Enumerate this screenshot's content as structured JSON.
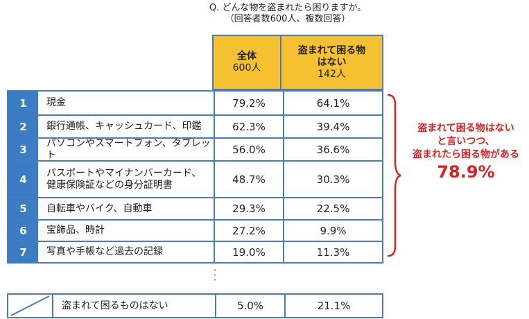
{
  "title": {
    "line1": "Q. どんな物を盗まれたら困りますか。",
    "line2": "（回答者数600人、複数回答）"
  },
  "headers": {
    "all": {
      "name": "全体",
      "n": "600人"
    },
    "none": {
      "name": "盗まれて困る物はない",
      "n": "142人"
    }
  },
  "chart_data": {
    "type": "table",
    "columns": [
      "全体 600人",
      "盗まれて困る物はない 142人"
    ],
    "rows": [
      {
        "rank": "1",
        "item": "現金",
        "all": "79.2%",
        "none": "64.1%"
      },
      {
        "rank": "2",
        "item": "銀行通帳、キャッシュカード、印鑑",
        "all": "62.3%",
        "none": "39.4%"
      },
      {
        "rank": "3",
        "item": "パソコンやスマートフォン、タブレット",
        "all": "56.0%",
        "none": "36.6%"
      },
      {
        "rank": "4",
        "item": "パスポートやマイナンバーカード、健康保険証などの身分証明書",
        "all": "48.7%",
        "none": "30.3%"
      },
      {
        "rank": "5",
        "item": "自転車やバイク、自動車",
        "all": "29.3%",
        "none": "22.5%"
      },
      {
        "rank": "6",
        "item": "宝飾品、時計",
        "all": "27.2%",
        "none": "9.9%"
      },
      {
        "rank": "7",
        "item": "写真や手帳など過去の記録",
        "all": "19.0%",
        "none": "11.3%"
      }
    ],
    "last_row": {
      "item": "盗まれて困るものはない",
      "all": "5.0%",
      "none": "21.1%"
    }
  },
  "row4_lines": [
    "パスポートやマイナンバーカード、",
    "健康保険証などの身分証明書"
  ],
  "callout": {
    "line1": "盗まれて困る物はない",
    "line2": "と言いつつ、",
    "line3": "盗まれたら困る物がある",
    "value": "78.9%"
  },
  "colors": {
    "accent_blue": "#3a7dc4",
    "header_yellow": "#f6c130",
    "callout_red": "#e02020"
  }
}
